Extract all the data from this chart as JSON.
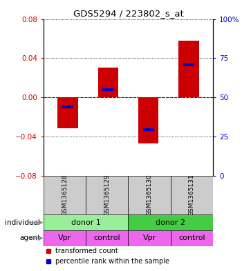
{
  "title": "GDS5294 / 223802_s_at",
  "samples": [
    "GSM1365128",
    "GSM1365129",
    "GSM1365130",
    "GSM1365131"
  ],
  "bar_values": [
    -0.032,
    0.03,
    -0.047,
    0.058
  ],
  "blue_values": [
    -0.01,
    0.008,
    -0.033,
    0.033
  ],
  "ylim": [
    -0.08,
    0.08
  ],
  "yticks": [
    -0.08,
    -0.04,
    0,
    0.04,
    0.08
  ],
  "right_yticks": [
    0,
    25,
    50,
    75,
    100
  ],
  "bar_color": "#cc0000",
  "blue_color": "#0000cc",
  "agent_row": [
    "Vpr",
    "control",
    "Vpr",
    "control"
  ],
  "agent_color": "#ee66ee",
  "sample_bg_color": "#cccccc",
  "donor1_color": "#99ee99",
  "donor2_color": "#44cc44",
  "bar_width": 0.5,
  "legend_red_label": "transformed count",
  "legend_blue_label": "percentile rank within the sample"
}
